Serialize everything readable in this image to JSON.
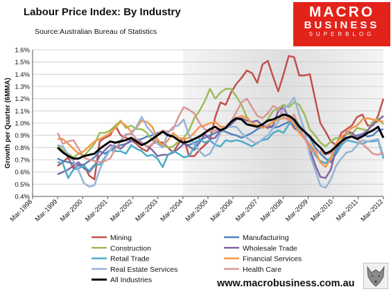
{
  "header": {
    "title": "Labour Price Index: By Industry",
    "source": "Source:Australian Bureau of Statistics"
  },
  "brand": {
    "line1": "MACRO",
    "line2": "BUSINESS",
    "line3": "SUPERBLOG",
    "url": "www.macrobusiness.com.au",
    "logo_color": "#e2231a"
  },
  "chart_data": {
    "type": "line",
    "title": "Labour Price Index: By Industry",
    "ylabel": "Growth per Quarter (6MMA)",
    "xlabel": "",
    "ylim": [
      0.004,
      0.016
    ],
    "y_ticks": [
      "0.4%",
      "0.5%",
      "0.6%",
      "0.7%",
      "0.8%",
      "0.9%",
      "1.0%",
      "1.1%",
      "1.2%",
      "1.3%",
      "1.4%",
      "1.5%",
      "1.6%"
    ],
    "x_ticks": [
      "Mar-1998",
      "Mar-1999",
      "Mar-2000",
      "Mar-2001",
      "Mar-2002",
      "Mar-2003",
      "Mar-2004",
      "Mar-2005",
      "Mar-2006",
      "Mar-2007",
      "Mar-2008",
      "Mar-2009",
      "Mar-2010",
      "Mar-2011",
      "Mar-2012"
    ],
    "x_start": "Mar-1999",
    "x_end": "Mar-2012",
    "shaded_range": [
      "Mar-2004",
      "Mar-2012"
    ],
    "grid": true,
    "legend_position": "bottom",
    "series": [
      {
        "name": "Mining",
        "color": "#c0504d",
        "width": 2.5,
        "values": [
          0.0065,
          0.0068,
          0.0072,
          0.0063,
          0.0066,
          0.0066,
          0.0057,
          0.0054,
          0.0085,
          0.0088,
          0.009,
          0.0098,
          0.009,
          0.0088,
          0.0086,
          0.0083,
          0.0079,
          0.0077,
          0.0083,
          0.0085,
          0.0084,
          0.008,
          0.0076,
          0.0083,
          0.0088,
          0.0073,
          0.0073,
          0.0078,
          0.0082,
          0.0086,
          0.0105,
          0.0117,
          0.0115,
          0.0125,
          0.0132,
          0.0137,
          0.0143,
          0.0141,
          0.0133,
          0.0148,
          0.0151,
          0.0138,
          0.0126,
          0.014,
          0.0155,
          0.0154,
          0.0139,
          0.0139,
          0.014,
          0.012,
          0.01,
          0.0093,
          0.0085,
          0.0082,
          0.0092,
          0.0095,
          0.0098,
          0.0105,
          0.0107,
          0.0098,
          0.0098,
          0.0106,
          0.012
        ]
      },
      {
        "name": "Manufacturing",
        "color": "#4f81bd",
        "width": 2.5,
        "values": [
          0.0071,
          0.0069,
          0.0068,
          0.0067,
          0.0065,
          0.0066,
          0.0069,
          0.0072,
          0.0077,
          0.0075,
          0.0078,
          0.008,
          0.0082,
          0.0083,
          0.0085,
          0.0086,
          0.0087,
          0.0089,
          0.009,
          0.0092,
          0.0093,
          0.0091,
          0.0089,
          0.0086,
          0.0083,
          0.0082,
          0.0084,
          0.0086,
          0.0088,
          0.009,
          0.0092,
          0.0094,
          0.0093,
          0.0091,
          0.009,
          0.0088,
          0.009,
          0.0092,
          0.0095,
          0.0097,
          0.0098,
          0.0096,
          0.0097,
          0.0099,
          0.0101,
          0.0103,
          0.0098,
          0.0093,
          0.0088,
          0.008,
          0.0075,
          0.0071,
          0.0068,
          0.0075,
          0.0082,
          0.0087,
          0.0089,
          0.009,
          0.0091,
          0.0089,
          0.009,
          0.0094,
          0.0095
        ]
      },
      {
        "name": "Construction",
        "color": "#9bbb59",
        "width": 2.5,
        "values": [
          0.0082,
          0.0078,
          0.0075,
          0.0072,
          0.0075,
          0.0073,
          0.0078,
          0.0083,
          0.0092,
          0.0092,
          0.0094,
          0.0098,
          0.0102,
          0.0096,
          0.0098,
          0.0095,
          0.0095,
          0.0092,
          0.0086,
          0.0084,
          0.0082,
          0.008,
          0.0081,
          0.0085,
          0.0088,
          0.0094,
          0.0104,
          0.011,
          0.0118,
          0.0128,
          0.012,
          0.0125,
          0.0128,
          0.0128,
          0.0122,
          0.0115,
          0.0105,
          0.01,
          0.0098,
          0.0099,
          0.0103,
          0.011,
          0.0112,
          0.0115,
          0.0113,
          0.0117,
          0.0115,
          0.0107,
          0.0095,
          0.009,
          0.0084,
          0.0081,
          0.0085,
          0.0088,
          0.0087,
          0.0091,
          0.0091,
          0.0096,
          0.0095,
          0.0094,
          0.0101,
          0.0104,
          0.0099
        ]
      },
      {
        "name": "Wholesale Trade",
        "color": "#8064a2",
        "width": 2.5,
        "values": [
          0.0058,
          0.006,
          0.0062,
          0.0065,
          0.0068,
          0.0063,
          0.006,
          0.0065,
          0.0073,
          0.0078,
          0.0082,
          0.0081,
          0.0079,
          0.0083,
          0.0086,
          0.0087,
          0.0084,
          0.0081,
          0.0078,
          0.0073,
          0.0074,
          0.0074,
          0.0076,
          0.0079,
          0.0083,
          0.0081,
          0.0078,
          0.0084,
          0.0091,
          0.0087,
          0.0088,
          0.0094,
          0.0096,
          0.0099,
          0.0103,
          0.0104,
          0.0102,
          0.0101,
          0.0102,
          0.0098,
          0.0096,
          0.0098,
          0.011,
          0.0113,
          0.0104,
          0.0096,
          0.0093,
          0.0089,
          0.0079,
          0.0066,
          0.0056,
          0.0055,
          0.0062,
          0.0079,
          0.0084,
          0.0093,
          0.0092,
          0.0088,
          0.0091,
          0.0094,
          0.0099,
          0.0102,
          0.0106
        ]
      },
      {
        "name": "Retail Trade",
        "color": "#4bacc6",
        "width": 2.5,
        "values": [
          0.0068,
          0.0067,
          0.0055,
          0.0062,
          0.0063,
          0.0065,
          0.0061,
          0.0066,
          0.0066,
          0.0072,
          0.0078,
          0.0077,
          0.0077,
          0.0075,
          0.0082,
          0.0079,
          0.0077,
          0.0073,
          0.0074,
          0.0071,
          0.0064,
          0.0074,
          0.0077,
          0.0075,
          0.0072,
          0.0073,
          0.008,
          0.0087,
          0.0084,
          0.0086,
          0.0082,
          0.0081,
          0.0086,
          0.0085,
          0.0086,
          0.0085,
          0.0083,
          0.0081,
          0.0084,
          0.0086,
          0.0087,
          0.0092,
          0.0094,
          0.0092,
          0.0099,
          0.0101,
          0.0093,
          0.0088,
          0.0083,
          0.0074,
          0.0069,
          0.0067,
          0.0072,
          0.0077,
          0.0082,
          0.0086,
          0.0085,
          0.0084,
          0.0083,
          0.0085,
          0.0085,
          0.0086,
          0.0071
        ]
      },
      {
        "name": "Financial Services",
        "color": "#f79646",
        "width": 2.5,
        "values": [
          0.0087,
          0.0087,
          0.0083,
          0.0079,
          0.0075,
          0.0077,
          0.0081,
          0.0085,
          0.0087,
          0.0089,
          0.0092,
          0.0096,
          0.0101,
          0.0098,
          0.0093,
          0.0096,
          0.0102,
          0.0101,
          0.0097,
          0.0087,
          0.0081,
          0.0086,
          0.0092,
          0.0088,
          0.0087,
          0.0088,
          0.0092,
          0.0097,
          0.0098,
          0.01,
          0.0101,
          0.0097,
          0.0097,
          0.0101,
          0.0104,
          0.0106,
          0.0104,
          0.01,
          0.0098,
          0.0096,
          0.0098,
          0.0101,
          0.0103,
          0.0104,
          0.0104,
          0.0099,
          0.0092,
          0.0087,
          0.0083,
          0.0077,
          0.0068,
          0.0064,
          0.0071,
          0.0083,
          0.0089,
          0.0092,
          0.0096,
          0.0098,
          0.0103,
          0.0104,
          0.0103,
          0.0102,
          0.0101
        ]
      },
      {
        "name": "Real Estate Services",
        "color": "#95b3d7",
        "width": 2.5,
        "values": [
          0.0082,
          0.0081,
          0.0074,
          0.0069,
          0.0061,
          0.0051,
          0.0048,
          0.0049,
          0.0062,
          0.0071,
          0.0078,
          0.0084,
          0.0086,
          0.0091,
          0.0091,
          0.0097,
          0.0105,
          0.0097,
          0.0092,
          0.0083,
          0.008,
          0.0092,
          0.0097,
          0.0098,
          0.0103,
          0.009,
          0.0082,
          0.0077,
          0.0073,
          0.0075,
          0.0083,
          0.0092,
          0.0096,
          0.0097,
          0.0097,
          0.0092,
          0.0088,
          0.0085,
          0.0083,
          0.0087,
          0.009,
          0.0096,
          0.0101,
          0.0112,
          0.0115,
          0.0121,
          0.0107,
          0.0094,
          0.0074,
          0.0062,
          0.0049,
          0.0047,
          0.0054,
          0.0065,
          0.0071,
          0.0076,
          0.0077,
          0.0082,
          0.0086,
          0.0085,
          0.0086,
          0.0087,
          0.0073
        ]
      },
      {
        "name": "Health Care",
        "color": "#d99694",
        "width": 2.5,
        "values": [
          0.0092,
          0.0083,
          0.0085,
          0.0086,
          0.0079,
          0.0072,
          0.007,
          0.0069,
          0.0068,
          0.0069,
          0.0071,
          0.0079,
          0.0085,
          0.009,
          0.0092,
          0.0087,
          0.0083,
          0.0081,
          0.0082,
          0.0091,
          0.0094,
          0.0093,
          0.0095,
          0.0105,
          0.0113,
          0.0111,
          0.0108,
          0.01,
          0.0095,
          0.0093,
          0.0094,
          0.0095,
          0.0097,
          0.0101,
          0.0109,
          0.0117,
          0.012,
          0.0113,
          0.0106,
          0.0104,
          0.0108,
          0.0114,
          0.0112,
          0.0105,
          0.0102,
          0.0107,
          0.0097,
          0.0088,
          0.0078,
          0.0076,
          0.0077,
          0.0074,
          0.0075,
          0.0081,
          0.0084,
          0.0087,
          0.009,
          0.0087,
          0.0083,
          0.0079,
          0.0075,
          0.0074,
          0.0076
        ]
      },
      {
        "name": "All Industries",
        "color": "#000000",
        "width": 3,
        "values": [
          0.008,
          0.0076,
          0.0073,
          0.0071,
          0.0071,
          0.0073,
          0.0074,
          0.0075,
          0.0079,
          0.0082,
          0.0085,
          0.0084,
          0.0085,
          0.0086,
          0.0088,
          0.0085,
          0.0082,
          0.0084,
          0.0087,
          0.009,
          0.0093,
          0.009,
          0.0089,
          0.0086,
          0.0084,
          0.0085,
          0.0087,
          0.0089,
          0.0092,
          0.0095,
          0.0097,
          0.0094,
          0.0096,
          0.0101,
          0.0104,
          0.0103,
          0.0099,
          0.0098,
          0.0097,
          0.0099,
          0.0102,
          0.0103,
          0.0105,
          0.0107,
          0.0106,
          0.0103,
          0.0097,
          0.0093,
          0.0089,
          0.0084,
          0.008,
          0.0075,
          0.0077,
          0.0081,
          0.0085,
          0.0088,
          0.0089,
          0.0087,
          0.0089,
          0.0092,
          0.0094,
          0.0097,
          0.0088
        ]
      }
    ]
  }
}
